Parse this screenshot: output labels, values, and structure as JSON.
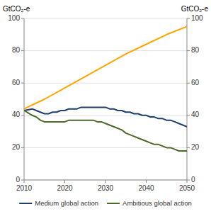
{
  "chart_data": {
    "type": "line",
    "ylabel": "GtCO₂-e",
    "y2label": "GtCO₂-e",
    "xlim": [
      2010,
      2050
    ],
    "xticks": [
      2010,
      2020,
      2030,
      2040,
      2050
    ],
    "ylim": [
      0,
      100
    ],
    "yticks": [
      0,
      20,
      40,
      60,
      80,
      100
    ],
    "y2lim": [
      0,
      100
    ],
    "y2ticks": [
      0,
      20,
      40,
      60,
      80,
      100
    ],
    "grid": true,
    "legend": "bottom",
    "series": [
      {
        "color": "#FFA500",
        "x": [
          2010,
          2015,
          2020,
          2025,
          2030,
          2035,
          2040,
          2045,
          2050
        ],
        "values": [
          44,
          50,
          57,
          64,
          71,
          78,
          84,
          90,
          95
        ]
      },
      {
        "name": "Medium global action",
        "color": "#1f3f6e",
        "x": [
          2010,
          2012,
          2013,
          2014,
          2015,
          2016,
          2017,
          2018,
          2019,
          2020,
          2021,
          2022,
          2023,
          2024,
          2025,
          2026,
          2027,
          2028,
          2029,
          2030,
          2031,
          2032,
          2033,
          2034,
          2035,
          2036,
          2037,
          2038,
          2039,
          2040,
          2041,
          2042,
          2043,
          2044,
          2045,
          2046,
          2047,
          2048,
          2049,
          2050
        ],
        "values": [
          43,
          44,
          43,
          42,
          41,
          41,
          42,
          42,
          43,
          43,
          44,
          44,
          44,
          45,
          45,
          45,
          45,
          45,
          45,
          45,
          44,
          44,
          43,
          43,
          42,
          42,
          41,
          41,
          40,
          40,
          39,
          39,
          38,
          38,
          37,
          37,
          36,
          35,
          34,
          33
        ]
      },
      {
        "name": "Ambitious global action",
        "color": "#4d6b28",
        "x": [
          2010,
          2012,
          2013,
          2014,
          2015,
          2016,
          2017,
          2018,
          2019,
          2020,
          2021,
          2022,
          2023,
          2024,
          2025,
          2026,
          2027,
          2028,
          2029,
          2030,
          2031,
          2032,
          2033,
          2034,
          2035,
          2036,
          2037,
          2038,
          2039,
          2040,
          2041,
          2042,
          2043,
          2044,
          2045,
          2046,
          2047,
          2048,
          2049,
          2050
        ],
        "values": [
          43,
          40,
          39,
          37,
          36,
          36,
          36,
          36,
          36,
          36,
          37,
          37,
          37,
          37,
          37,
          37,
          37,
          36,
          36,
          35,
          34,
          33,
          32,
          31,
          29,
          28,
          27,
          26,
          25,
          24,
          23,
          22,
          22,
          21,
          20,
          20,
          19,
          18,
          18,
          18
        ]
      }
    ]
  }
}
